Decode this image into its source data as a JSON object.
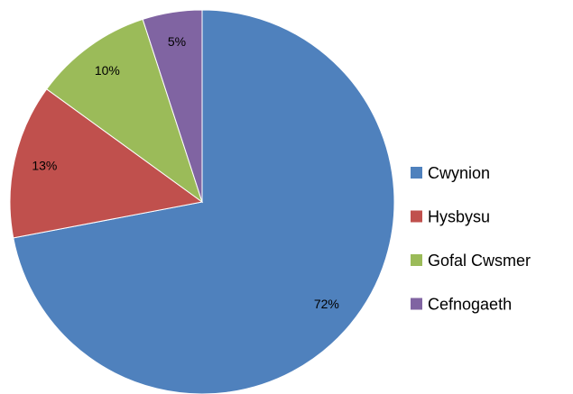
{
  "chart_data": {
    "type": "pie",
    "categories": [
      "Cwynion",
      "Hysbysu",
      "Gofal Cwsmer",
      "Cefnogaeth"
    ],
    "values": [
      72,
      13,
      10,
      5
    ],
    "value_labels": [
      "72%",
      "13%",
      "10%",
      "5%"
    ],
    "colors": [
      "#4f81bd",
      "#c0504d",
      "#9bbb59",
      "#8064a2"
    ],
    "legend": "right"
  }
}
